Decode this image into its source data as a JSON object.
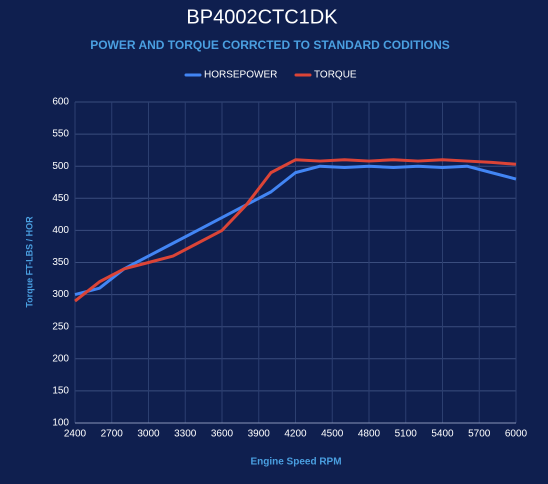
{
  "chart_data": {
    "type": "line",
    "title": "BP4002CTC1DK",
    "subtitle": "POWER AND TORQUE CORRCTED TO STANDARD CODITIONS",
    "x_label": "Engine Speed RPM",
    "y_label": "Torque FT-LBS / HOR",
    "x": [
      2400,
      2600,
      2800,
      3000,
      3200,
      3400,
      3600,
      3800,
      4000,
      4200,
      4400,
      4600,
      4800,
      5000,
      5200,
      5400,
      5600,
      5800,
      6000
    ],
    "series": [
      {
        "name": "HORSEPOWER",
        "color": "#4285f4",
        "values": [
          300,
          310,
          340,
          360,
          380,
          400,
          420,
          440,
          460,
          490,
          500,
          498,
          500,
          498,
          500,
          498,
          500,
          490,
          480
        ]
      },
      {
        "name": "TORQUE",
        "color": "#db4437",
        "values": [
          290,
          320,
          340,
          350,
          360,
          380,
          400,
          440,
          490,
          510,
          508,
          510,
          508,
          510,
          508,
          510,
          508,
          506,
          503
        ]
      }
    ],
    "xlim": [
      2400,
      6000
    ],
    "xticks": [
      2400,
      2700,
      3000,
      3300,
      3600,
      3900,
      4200,
      4500,
      4800,
      5100,
      5400,
      5700,
      6000
    ],
    "ylim": [
      100,
      600
    ],
    "yticks": [
      100,
      150,
      200,
      250,
      300,
      350,
      400,
      450,
      500,
      550,
      600
    ],
    "grid": true,
    "legend": "top"
  }
}
